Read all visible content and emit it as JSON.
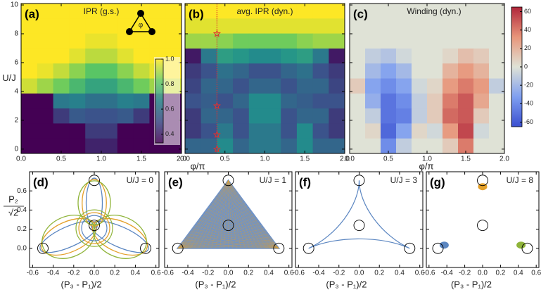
{
  "chart_data": [
    {
      "type": "heatmap",
      "label": "(a)",
      "title": "IPR (g.s.)",
      "ylabel": "U/J",
      "inset_label": "φ",
      "xlim": [
        0,
        2
      ],
      "ylim": [
        -0.3,
        10.1
      ],
      "xticks": [
        {
          "value": 0,
          "label": "0.0"
        },
        0.5,
        {
          "value": 1,
          "label": "1.0"
        },
        1.5,
        {
          "value": 2,
          "label": "2.0"
        }
      ],
      "yticks": [
        0,
        2,
        4,
        6,
        8,
        10
      ],
      "zlim": [
        0.33,
        1.0
      ],
      "colors": [
        "#440154",
        "#3b528b",
        "#21918c",
        "#5ec962",
        "#fde725"
      ],
      "cbticks": [
        0.4,
        0.6,
        0.8,
        {
          "value": 1,
          "label": "1.0"
        }
      ],
      "z": [
        [
          1,
          1,
          1,
          1,
          1,
          1,
          1,
          1,
          1,
          1
        ],
        [
          1,
          1,
          1,
          1,
          1,
          1,
          1,
          1,
          1,
          1
        ],
        [
          1,
          1,
          1,
          1,
          0.98,
          0.98,
          1,
          1,
          1,
          1
        ],
        [
          1,
          1,
          1,
          0.97,
          0.93,
          0.93,
          0.97,
          1,
          1,
          1
        ],
        [
          1,
          0.98,
          0.94,
          0.88,
          0.82,
          0.82,
          0.88,
          0.94,
          0.98,
          1
        ],
        [
          0.95,
          0.9,
          0.85,
          0.78,
          0.72,
          0.72,
          0.78,
          0.85,
          0.9,
          0.95
        ],
        [
          0.33,
          0.33,
          0.6,
          0.62,
          0.58,
          0.58,
          0.62,
          0.6,
          0.33,
          0.33
        ],
        [
          0.33,
          0.33,
          0.45,
          0.52,
          0.5,
          0.5,
          0.52,
          0.45,
          0.33,
          0.33
        ],
        [
          0.33,
          0.33,
          0.33,
          0.33,
          0.45,
          0.45,
          0.33,
          0.33,
          0.33,
          0.33
        ],
        [
          0.33,
          0.33,
          0.33,
          0.33,
          0.4,
          0.4,
          0.33,
          0.33,
          0.33,
          0.33
        ]
      ]
    },
    {
      "type": "heatmap",
      "label": "(b)",
      "title": "avg. IPR (dyn.)",
      "xlabel": "φ/π",
      "xlim": [
        0,
        2
      ],
      "ylim": [
        -0.3,
        10.1
      ],
      "xticks": [
        {
          "value": 0,
          "label": "0.0"
        },
        0.5,
        {
          "value": 1,
          "label": "1.0"
        },
        1.5,
        {
          "value": 2,
          "label": "2.0"
        }
      ],
      "yticks": [
        0,
        2,
        4,
        6,
        8,
        10
      ],
      "show_ytick_labels": false,
      "zlim": [
        0.33,
        1.0
      ],
      "colors": [
        "#440154",
        "#3b528b",
        "#21918c",
        "#5ec962",
        "#fde725"
      ],
      "marker_line": {
        "x": 0.4,
        "y": [
          0,
          1,
          3,
          8
        ],
        "color": "#e03030"
      },
      "z": [
        [
          1,
          1,
          1,
          1,
          1,
          1,
          1,
          1,
          1,
          1
        ],
        [
          0.97,
          0.97,
          0.97,
          0.97,
          0.97,
          0.97,
          0.97,
          0.97,
          0.97,
          0.97
        ],
        [
          0.9,
          0.9,
          0.88,
          0.85,
          0.85,
          0.85,
          0.85,
          0.88,
          0.9,
          0.9
        ],
        [
          0.38,
          0.6,
          0.7,
          0.68,
          0.65,
          0.65,
          0.68,
          0.7,
          0.6,
          0.38
        ],
        [
          0.45,
          0.5,
          0.58,
          0.55,
          0.5,
          0.5,
          0.55,
          0.58,
          0.5,
          0.45
        ],
        [
          0.47,
          0.55,
          0.55,
          0.5,
          0.55,
          0.55,
          0.5,
          0.55,
          0.55,
          0.47
        ],
        [
          0.5,
          0.53,
          0.5,
          0.55,
          0.65,
          0.65,
          0.55,
          0.53,
          0.5,
          0.5
        ],
        [
          0.45,
          0.55,
          0.55,
          0.5,
          0.65,
          0.65,
          0.5,
          0.55,
          0.55,
          0.45
        ],
        [
          0.45,
          0.5,
          0.6,
          0.5,
          0.6,
          0.6,
          0.5,
          0.65,
          0.5,
          0.45
        ],
        [
          0.55,
          0.55,
          0.65,
          0.55,
          0.6,
          0.6,
          0.55,
          0.65,
          0.55,
          0.55
        ]
      ]
    },
    {
      "type": "heatmap",
      "label": "(c)",
      "title": "Winding (dyn.)",
      "xlabel": "φ/π",
      "xlim": [
        0,
        2
      ],
      "ylim": [
        -0.3,
        10.1
      ],
      "xticks": [
        {
          "value": 0,
          "label": "0.0"
        },
        0.5,
        {
          "value": 1,
          "label": "1.0"
        },
        1.5,
        {
          "value": 2,
          "label": "2.0"
        }
      ],
      "yticks": [
        0,
        2,
        4,
        6,
        8,
        10
      ],
      "show_ytick_labels": false,
      "zlim": [
        -65,
        65
      ],
      "colors": [
        "#3a4fd0",
        "#7f9ff0",
        "#dfe2d6",
        "#e8957a",
        "#b0253a"
      ],
      "cbticks": [
        60,
        40,
        20,
        0,
        -20,
        -40,
        -60
      ],
      "z": [
        [
          0,
          0,
          0,
          0,
          0,
          0,
          0,
          0,
          0,
          0
        ],
        [
          0,
          0,
          0,
          0,
          0,
          0,
          0,
          0,
          0,
          0
        ],
        [
          0,
          0,
          0,
          0,
          0,
          0,
          0,
          0,
          0,
          0
        ],
        [
          0,
          -10,
          -15,
          -5,
          0,
          0,
          5,
          15,
          10,
          0
        ],
        [
          0,
          -20,
          -30,
          -20,
          0,
          0,
          20,
          30,
          20,
          0
        ],
        [
          10,
          -30,
          -40,
          -30,
          -5,
          5,
          30,
          40,
          30,
          -10
        ],
        [
          0,
          -25,
          -50,
          -40,
          -10,
          10,
          40,
          50,
          25,
          0
        ],
        [
          0,
          -10,
          -50,
          -45,
          -10,
          10,
          45,
          50,
          10,
          0
        ],
        [
          0,
          5,
          -55,
          -30,
          5,
          -5,
          30,
          55,
          -5,
          0
        ],
        [
          0,
          0,
          -40,
          -10,
          0,
          0,
          10,
          40,
          0,
          0
        ]
      ]
    },
    {
      "type": "trajectory",
      "style": "loops",
      "label": "(d)",
      "annotation": "U/J = 0",
      "xlabel": "(P₃ - P₁)/2",
      "ylabel_num": "P₂",
      "ylabel_den": "√2",
      "xlim": [
        -0.63,
        0.63
      ],
      "ylim": [
        -0.2,
        0.8
      ],
      "xticks": [
        -0.6,
        -0.4,
        -0.2,
        {
          "value": 0,
          "label": "0.0"
        },
        0.2,
        0.4,
        0.6
      ],
      "yticks": [
        {
          "value": 0,
          "label": "0.0"
        },
        0.2,
        0.4,
        0.6
      ],
      "circles": {
        "x": [
          -0.5,
          0.5,
          0,
          0
        ],
        "y": [
          0,
          0,
          0.71,
          0.24
        ]
      },
      "colors": [
        "#5b86c1",
        "#e3a02a",
        "#8fb43a"
      ]
    },
    {
      "type": "trajectory",
      "style": "filled",
      "label": "(e)",
      "annotation": "U/J = 1",
      "xlabel": "(P₃ - P₁)/2",
      "show_ytick_labels": false,
      "xlim": [
        -0.63,
        0.63
      ],
      "ylim": [
        -0.2,
        0.8
      ],
      "xticks": [
        -0.6,
        -0.4,
        -0.2,
        {
          "value": 0,
          "label": "0.0"
        },
        0.2,
        0.4,
        0.6
      ],
      "yticks": [
        {
          "value": 0,
          "label": "0.0"
        },
        0.2,
        0.4,
        0.6
      ],
      "circles": {
        "x": [
          -0.5,
          0.5,
          0,
          0
        ],
        "y": [
          0,
          0,
          0.71,
          0.24
        ]
      },
      "colors": [
        "#6f93c8",
        "#e3a02a"
      ]
    },
    {
      "type": "trajectory",
      "style": "deltoid",
      "label": "(f)",
      "annotation": "U/J = 3",
      "xlabel": "(P₃ - P₁)/2",
      "show_ytick_labels": false,
      "xlim": [
        -0.63,
        0.63
      ],
      "ylim": [
        -0.2,
        0.8
      ],
      "xticks": [
        -0.6,
        -0.4,
        -0.2,
        {
          "value": 0,
          "label": "0.0"
        },
        0.2,
        0.4,
        0.6
      ],
      "yticks": [
        {
          "value": 0,
          "label": "0.0"
        },
        0.2,
        0.4,
        0.6
      ],
      "circles": {
        "x": [
          -0.5,
          0.5,
          0,
          0
        ],
        "y": [
          0,
          0,
          0.71,
          0.24
        ]
      },
      "colors": [
        "#5b86c1"
      ]
    },
    {
      "type": "trajectory",
      "style": "blobs",
      "label": "(g)",
      "annotation": "U/J = 8",
      "xlabel": "(P₃ - P₁)/2",
      "show_ytick_labels": false,
      "xlim": [
        -0.63,
        0.63
      ],
      "ylim": [
        -0.2,
        0.8
      ],
      "xticks": [
        -0.6,
        -0.4,
        -0.2,
        {
          "value": 0,
          "label": "0.0"
        },
        0.2,
        0.4,
        0.6
      ],
      "yticks": [
        {
          "value": 0,
          "label": "0.0"
        },
        0.2,
        0.4,
        0.6
      ],
      "circles": {
        "x": [
          -0.5,
          0.5,
          0,
          0
        ],
        "y": [
          0,
          0,
          0.71,
          0.24
        ]
      },
      "colors": [
        "#5b86c1",
        "#8fb43a",
        "#e3a02a"
      ]
    }
  ]
}
